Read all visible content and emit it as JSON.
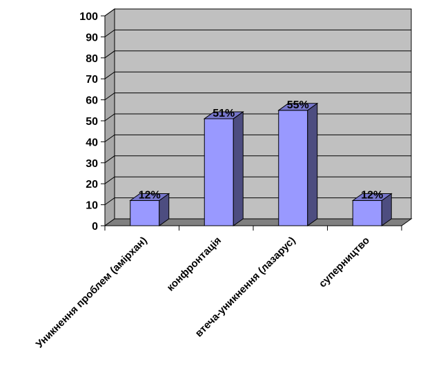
{
  "chart_data": {
    "type": "bar",
    "categories": [
      "Уникнення проблем (амірхан)",
      "конфронтація",
      "втеча-уникнення (лазарус)",
      "суперництво"
    ],
    "values": [
      12,
      51,
      55,
      12
    ],
    "data_labels": [
      "12%",
      "51%",
      "55%",
      "12%"
    ],
    "ylim": [
      0,
      100
    ],
    "yticks": [
      0,
      10,
      20,
      30,
      40,
      50,
      60,
      70,
      80,
      90,
      100
    ],
    "grid": true,
    "style": "3d",
    "colors": {
      "wall": "#c0c0c0",
      "floor": "#808080",
      "bar_front": "#9999ff",
      "bar_side": "#4d4d80",
      "bar_top": "#7777cc",
      "grid": "#000000"
    }
  }
}
